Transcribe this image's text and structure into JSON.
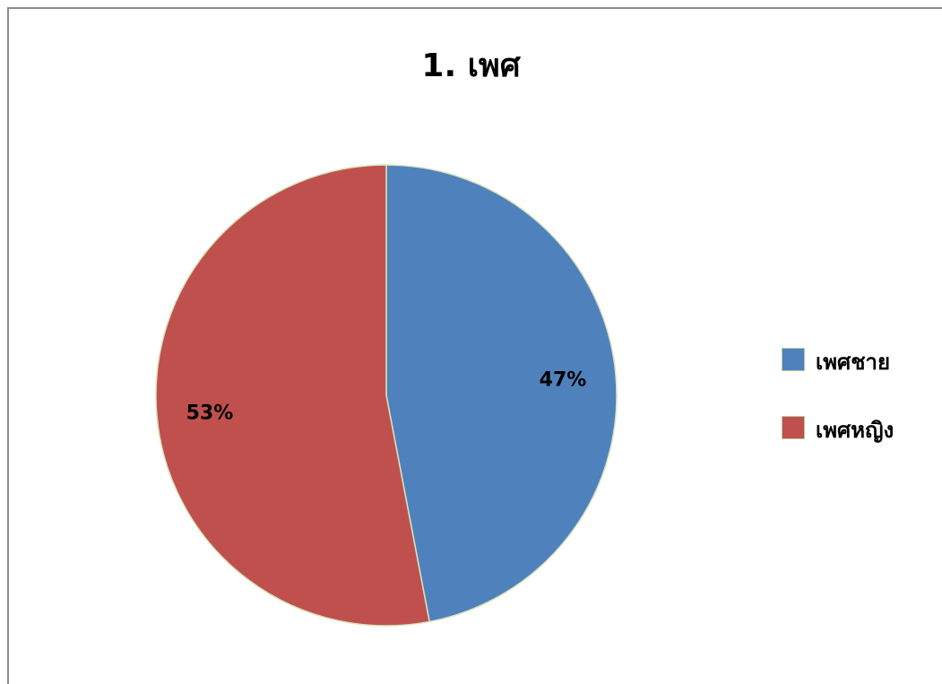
{
  "chart_data": {
    "type": "pie",
    "title": "1. เพศ",
    "categories": [
      "เพศชาย",
      "เพศหญิง"
    ],
    "values": [
      47,
      53
    ],
    "data_labels": [
      "47%",
      "53%"
    ],
    "colors": [
      "#4f81bd",
      "#c0504d"
    ],
    "slice_border_color": "#d8e4bc",
    "legend_position": "right"
  }
}
